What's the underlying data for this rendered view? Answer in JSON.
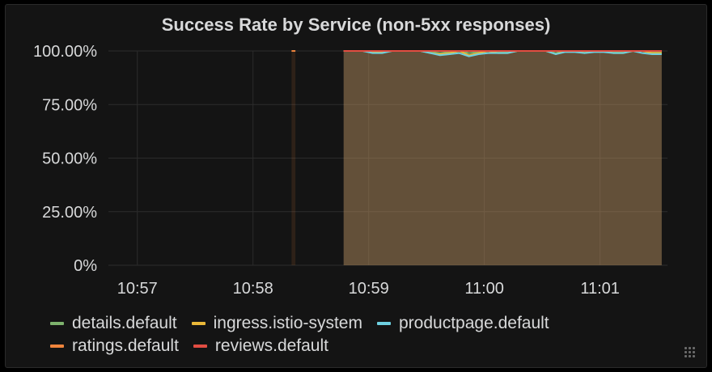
{
  "panel": {
    "title": "Success Rate by Service (non-5xx responses)"
  },
  "chart_data": {
    "type": "area",
    "title": "Success Rate by Service (non-5xx responses)",
    "xlabel": "",
    "ylabel": "",
    "ylim": [
      0,
      100
    ],
    "xlim": [
      "10:56:45",
      "11:01:35"
    ],
    "y_ticks": [
      "0%",
      "25.00%",
      "50.00%",
      "75.00%",
      "100.00%"
    ],
    "y_tick_values": [
      0,
      25,
      50,
      75,
      100
    ],
    "x_ticks": [
      "10:57",
      "10:58",
      "10:59",
      "11:00",
      "11:01"
    ],
    "x_tick_values": [
      "10:57:00",
      "10:58:00",
      "10:59:00",
      "11:00:00",
      "11:01:00"
    ],
    "grid": true,
    "legend_position": "bottom",
    "series": [
      {
        "name": "details.default",
        "color": "#7eb26d",
        "x": [
          "10:58:47",
          "10:58:52",
          "10:58:57",
          "10:59:02",
          "10:59:07",
          "10:59:12",
          "10:59:17",
          "10:59:22",
          "10:59:27",
          "10:59:32",
          "10:59:37",
          "10:59:42",
          "10:59:47",
          "10:59:52",
          "10:59:57",
          "11:00:02",
          "11:00:07",
          "11:00:12",
          "11:00:17",
          "11:00:22",
          "11:00:27",
          "11:00:32",
          "11:00:37",
          "11:00:42",
          "11:00:47",
          "11:00:52",
          "11:00:57",
          "11:01:02",
          "11:01:07",
          "11:01:12",
          "11:01:17",
          "11:01:22",
          "11:01:27",
          "11:01:32"
        ],
        "values": [
          100,
          100,
          100,
          99.5,
          99.5,
          100,
          100,
          100,
          100,
          99.5,
          99,
          99.5,
          100,
          99,
          99.5,
          100,
          99.5,
          99.5,
          100,
          100,
          100,
          100,
          99,
          100,
          100,
          99.5,
          100,
          100,
          99.5,
          99.5,
          100,
          100,
          99.5,
          99.5
        ]
      },
      {
        "name": "ingress.istio-system",
        "color": "#eab839",
        "x": [
          "10:58:47",
          "10:58:52",
          "10:58:57",
          "10:59:02",
          "10:59:07",
          "10:59:12",
          "10:59:17",
          "10:59:22",
          "10:59:27",
          "10:59:32",
          "10:59:37",
          "10:59:42",
          "10:59:47",
          "10:59:52",
          "10:59:57",
          "11:00:02",
          "11:00:07",
          "11:00:12",
          "11:00:17",
          "11:00:22",
          "11:00:27",
          "11:00:32",
          "11:00:37",
          "11:00:42",
          "11:00:47",
          "11:00:52",
          "11:00:57",
          "11:01:02",
          "11:01:07",
          "11:01:12",
          "11:01:17",
          "11:01:22",
          "11:01:27",
          "11:01:32"
        ],
        "values": [
          100,
          100,
          100,
          99.5,
          99.5,
          100,
          100,
          100,
          100,
          99,
          98.5,
          99,
          100,
          98,
          99,
          100,
          99,
          99,
          100,
          100,
          100,
          100,
          98.5,
          100,
          100,
          99,
          100,
          100,
          99,
          99,
          100,
          100,
          99,
          99
        ]
      },
      {
        "name": "productpage.default",
        "color": "#6ed0e0",
        "x": [
          "10:58:47",
          "10:58:52",
          "10:58:57",
          "10:59:02",
          "10:59:07",
          "10:59:12",
          "10:59:17",
          "10:59:22",
          "10:59:27",
          "10:59:32",
          "10:59:37",
          "10:59:42",
          "10:59:47",
          "10:59:52",
          "10:59:57",
          "11:00:02",
          "11:00:07",
          "11:00:12",
          "11:00:17",
          "11:00:22",
          "11:00:27",
          "11:00:32",
          "11:00:37",
          "11:00:42",
          "11:00:47",
          "11:00:52",
          "11:00:57",
          "11:01:02",
          "11:01:07",
          "11:01:12",
          "11:01:17",
          "11:01:22",
          "11:01:27",
          "11:01:32"
        ],
        "values": [
          100,
          100,
          100,
          99,
          99,
          100,
          100,
          100,
          100,
          99,
          98,
          98.5,
          99,
          97.5,
          98.5,
          99,
          99,
          99,
          100,
          100,
          100,
          100,
          98.5,
          99.5,
          99.5,
          99,
          99.5,
          99.5,
          99,
          99,
          100,
          99,
          98.5,
          98.5
        ]
      },
      {
        "name": "ratings.default",
        "color": "#ef843c",
        "x": [
          "10:58:20",
          "10:58:22",
          "10:58:47",
          "10:58:52",
          "10:58:57",
          "10:59:02",
          "10:59:07",
          "10:59:12",
          "10:59:17",
          "10:59:22",
          "10:59:27",
          "10:59:32",
          "10:59:37",
          "10:59:42",
          "10:59:47",
          "10:59:52",
          "10:59:57",
          "11:00:02",
          "11:00:07",
          "11:00:12",
          "11:00:17",
          "11:00:22",
          "11:00:27",
          "11:00:32",
          "11:00:37",
          "11:00:42",
          "11:00:47",
          "11:00:52",
          "11:00:57",
          "11:01:02",
          "11:01:07",
          "11:01:12",
          "11:01:17",
          "11:01:22",
          "11:01:27",
          "11:01:32"
        ],
        "values": [
          100,
          100,
          100,
          100,
          100,
          100,
          100,
          100,
          100,
          100,
          100,
          100,
          100,
          100,
          100,
          100,
          100,
          100,
          100,
          100,
          100,
          100,
          100,
          100,
          100,
          100,
          100,
          100,
          100,
          100,
          100,
          100,
          100,
          100,
          100,
          100
        ]
      },
      {
        "name": "reviews.default",
        "color": "#e24d42",
        "x": [
          "10:58:47",
          "10:58:52",
          "10:58:57",
          "10:59:02",
          "10:59:07",
          "10:59:12",
          "10:59:17",
          "10:59:22",
          "10:59:27",
          "10:59:32",
          "10:59:37",
          "10:59:42",
          "10:59:47",
          "10:59:52",
          "10:59:57",
          "11:00:02",
          "11:00:07",
          "11:00:12",
          "11:00:17",
          "11:00:22",
          "11:00:27",
          "11:00:32",
          "11:00:37",
          "11:00:42",
          "11:00:47",
          "11:00:52",
          "11:00:57",
          "11:01:02",
          "11:01:07",
          "11:01:12",
          "11:01:17",
          "11:01:22",
          "11:01:27",
          "11:01:32"
        ],
        "values": [
          100,
          100,
          100,
          100,
          100,
          100,
          100,
          100,
          100,
          100,
          100,
          100,
          100,
          100,
          100,
          100,
          100,
          100,
          100,
          100,
          100,
          100,
          100,
          100,
          100,
          100,
          100,
          100,
          100,
          100,
          100,
          100,
          100,
          100
        ]
      }
    ]
  },
  "legend": [
    {
      "label": "details.default",
      "color": "#7eb26d"
    },
    {
      "label": "ingress.istio-system",
      "color": "#eab839"
    },
    {
      "label": "productpage.default",
      "color": "#6ed0e0"
    },
    {
      "label": "ratings.default",
      "color": "#ef843c"
    },
    {
      "label": "reviews.default",
      "color": "#e24d42"
    }
  ]
}
